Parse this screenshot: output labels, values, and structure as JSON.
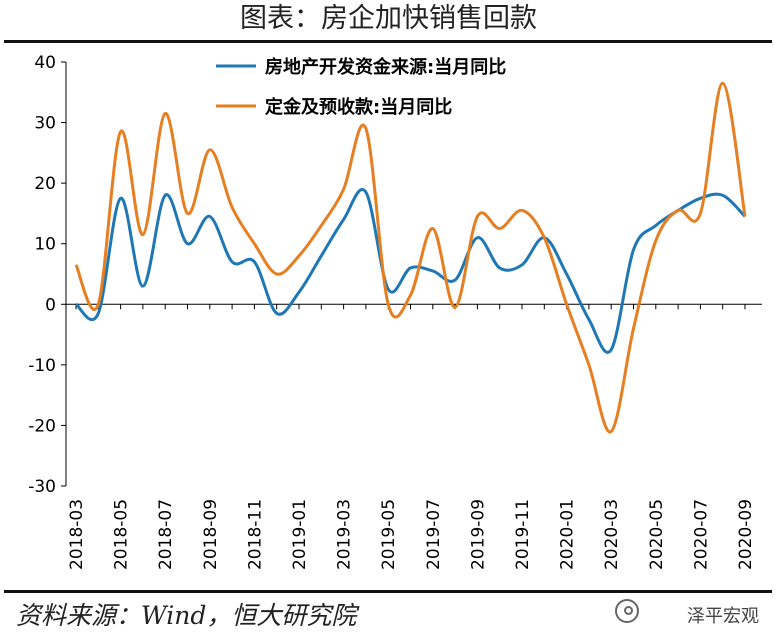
{
  "title": "图表：房企加快销售回款",
  "source": "资料来源：Wind，恒大研究院",
  "watermark": "泽平宏观",
  "chart_data": {
    "type": "line",
    "x": [
      "2018-03",
      "2018-04",
      "2018-05",
      "2018-06",
      "2018-07",
      "2018-08",
      "2018-09",
      "2018-10",
      "2018-11",
      "2018-12",
      "2019-01",
      "2019-02",
      "2019-03",
      "2019-04",
      "2019-05",
      "2019-06",
      "2019-07",
      "2019-08",
      "2019-09",
      "2019-10",
      "2019-11",
      "2019-12",
      "2020-01",
      "2020-02",
      "2020-03",
      "2020-04",
      "2020-05",
      "2020-06",
      "2020-07",
      "2020-08",
      "2020-09"
    ],
    "x_tick_labels": [
      "2018-03",
      "2018-05",
      "2018-07",
      "2018-09",
      "2018-11",
      "2019-01",
      "2019-03",
      "2019-05",
      "2019-07",
      "2019-09",
      "2019-11",
      "2020-01",
      "2020-03",
      "2020-05",
      "2020-07",
      "2020-09"
    ],
    "ylim": [
      -30,
      40
    ],
    "yticks": [
      -30,
      -20,
      -10,
      0,
      10,
      20,
      30,
      40
    ],
    "legend_position": "top",
    "series": [
      {
        "name": "房地产开发资金来源:当月同比",
        "color": "#1f77b4",
        "values": [
          0,
          -1.5,
          17.5,
          3,
          18,
          10,
          14.5,
          7,
          7,
          -1.5,
          2,
          8,
          14,
          18.5,
          2.5,
          6,
          5.5,
          4,
          11,
          6,
          6.5,
          11,
          5,
          -2.5,
          -7.5,
          9,
          13,
          15.5,
          17.5,
          18,
          14.5
        ]
      },
      {
        "name": "定金及预收款:当月同比",
        "color": "#e67e22",
        "values": [
          6.5,
          0,
          28.5,
          11.5,
          31.5,
          15,
          25.5,
          16,
          10,
          5,
          8,
          13,
          19,
          29,
          0,
          1.5,
          12.5,
          -0.5,
          14.5,
          12.5,
          15.5,
          11,
          0,
          -10,
          -21,
          -4,
          10.5,
          15.5,
          15,
          36.5,
          14.5
        ]
      }
    ]
  }
}
